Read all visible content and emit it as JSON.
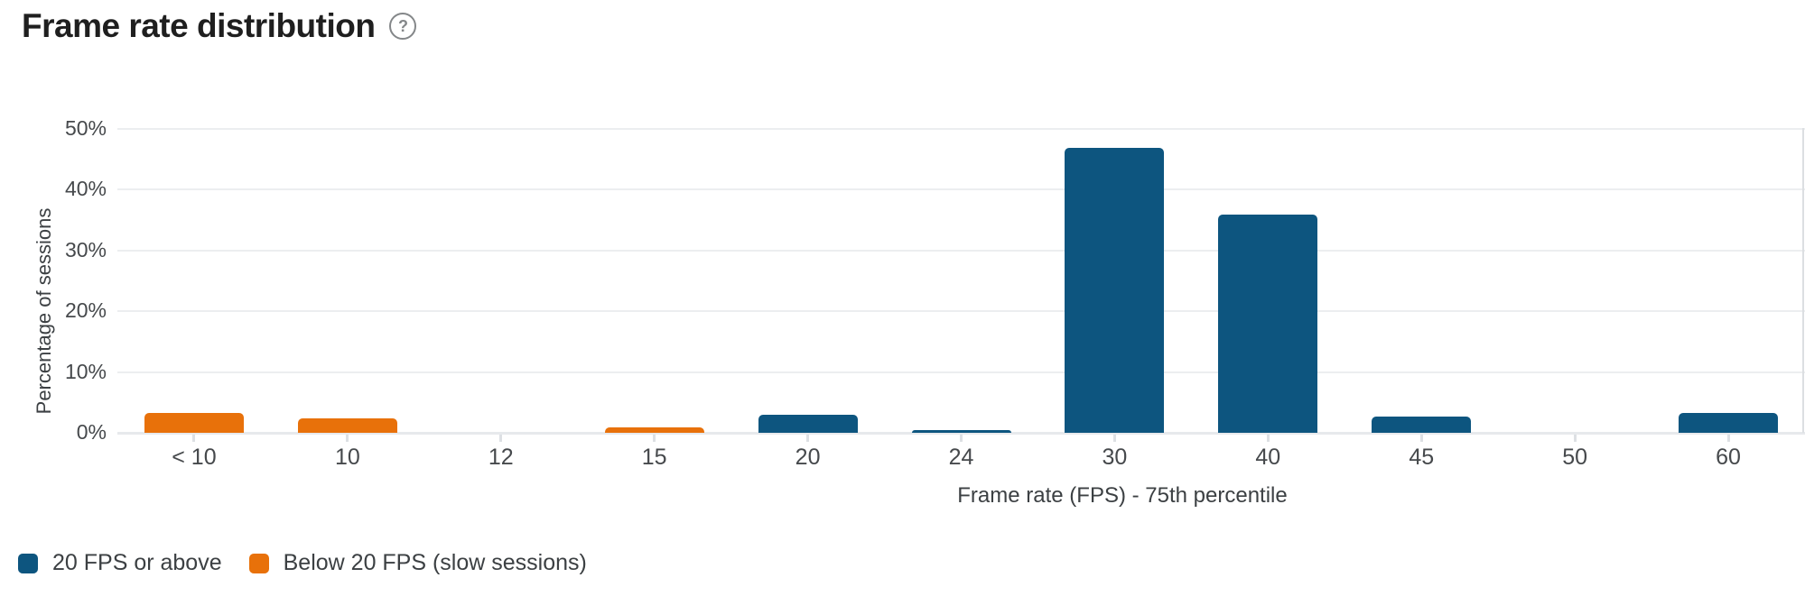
{
  "header": {
    "title": "Frame rate distribution",
    "help_icon": {
      "name": "help-icon",
      "glyph": "?"
    }
  },
  "colors": {
    "above20_blue": "#0d557f",
    "below20_orange": "#e8710a",
    "gridline": "#eceef0",
    "axis_text": "#46494c",
    "title_text": "#1f1f1f"
  },
  "chart_data": {
    "type": "bar",
    "title": "Frame rate distribution",
    "xlabel": "Frame rate (FPS) - 75th percentile",
    "ylabel": "Percentage of sessions",
    "categories": [
      "< 10",
      "10",
      "12",
      "15",
      "20",
      "24",
      "30",
      "40",
      "45",
      "50",
      "60"
    ],
    "series": [
      {
        "name": "20 FPS or above",
        "color": "#0d557f",
        "values": [
          null,
          null,
          null,
          null,
          3.0,
          0.5,
          46.8,
          35.9,
          2.7,
          0,
          3.3
        ]
      },
      {
        "name": "Below 20 FPS (slow sessions)",
        "color": "#e8710a",
        "values": [
          3.3,
          2.4,
          0,
          0.9,
          null,
          null,
          null,
          null,
          null,
          null,
          null
        ]
      }
    ],
    "ylim": [
      0,
      50
    ],
    "yticks": [
      {
        "value": 0,
        "label": "0%"
      },
      {
        "value": 10,
        "label": "10%"
      },
      {
        "value": 20,
        "label": "20%"
      },
      {
        "value": 30,
        "label": "30%"
      },
      {
        "value": 40,
        "label": "40%"
      },
      {
        "value": 50,
        "label": "50%"
      }
    ],
    "grid": true,
    "legend_position": "bottom-left"
  },
  "legend": {
    "items": [
      {
        "label": "20 FPS or above",
        "color": "#0d557f"
      },
      {
        "label": "Below 20 FPS (slow sessions)",
        "color": "#e8710a"
      }
    ]
  }
}
